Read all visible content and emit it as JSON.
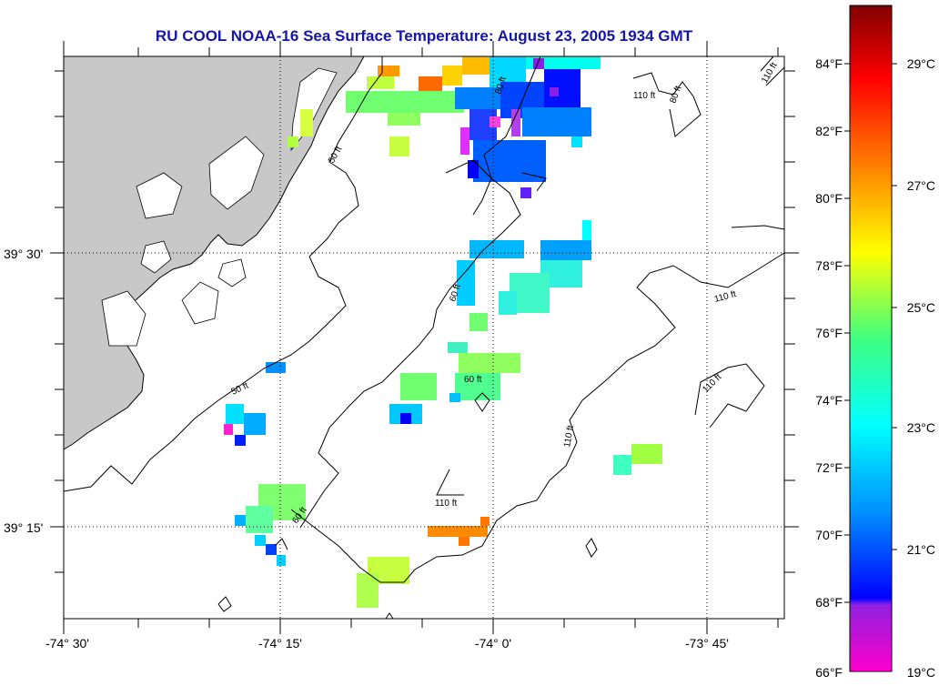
{
  "title": "RU COOL  NOAA-16  Sea Surface Temperature:  August 23, 2005 1934 GMT",
  "map": {
    "lon_ticks": [
      "-74° 30'",
      "-74° 15'",
      "-74° 0'",
      "-73° 45'"
    ],
    "lat_ticks": [
      "39° 30'",
      "39° 15'"
    ],
    "contour_labels": [
      "50 ft",
      "50 ft",
      "60 ft",
      "60 ft",
      "60 ft",
      "80 ft",
      "110 ft",
      "110 ft",
      "110 ft",
      "110 ft",
      "110 ft",
      "110 ft",
      "80 ft"
    ]
  },
  "colorbar": {
    "f_labels": [
      "84°F",
      "82°F",
      "80°F",
      "78°F",
      "76°F",
      "74°F",
      "72°F",
      "70°F",
      "68°F",
      "66°F"
    ],
    "c_labels": [
      "29°C",
      "27°C",
      "25°C",
      "23°C",
      "21°C",
      "19°C"
    ],
    "colors": [
      "#ff00cc",
      "#8020e0",
      "#0000ff",
      "#00a0ff",
      "#00ffff",
      "#40ff80",
      "#ffff00",
      "#ff8000",
      "#ff0000",
      "#800000"
    ]
  }
}
